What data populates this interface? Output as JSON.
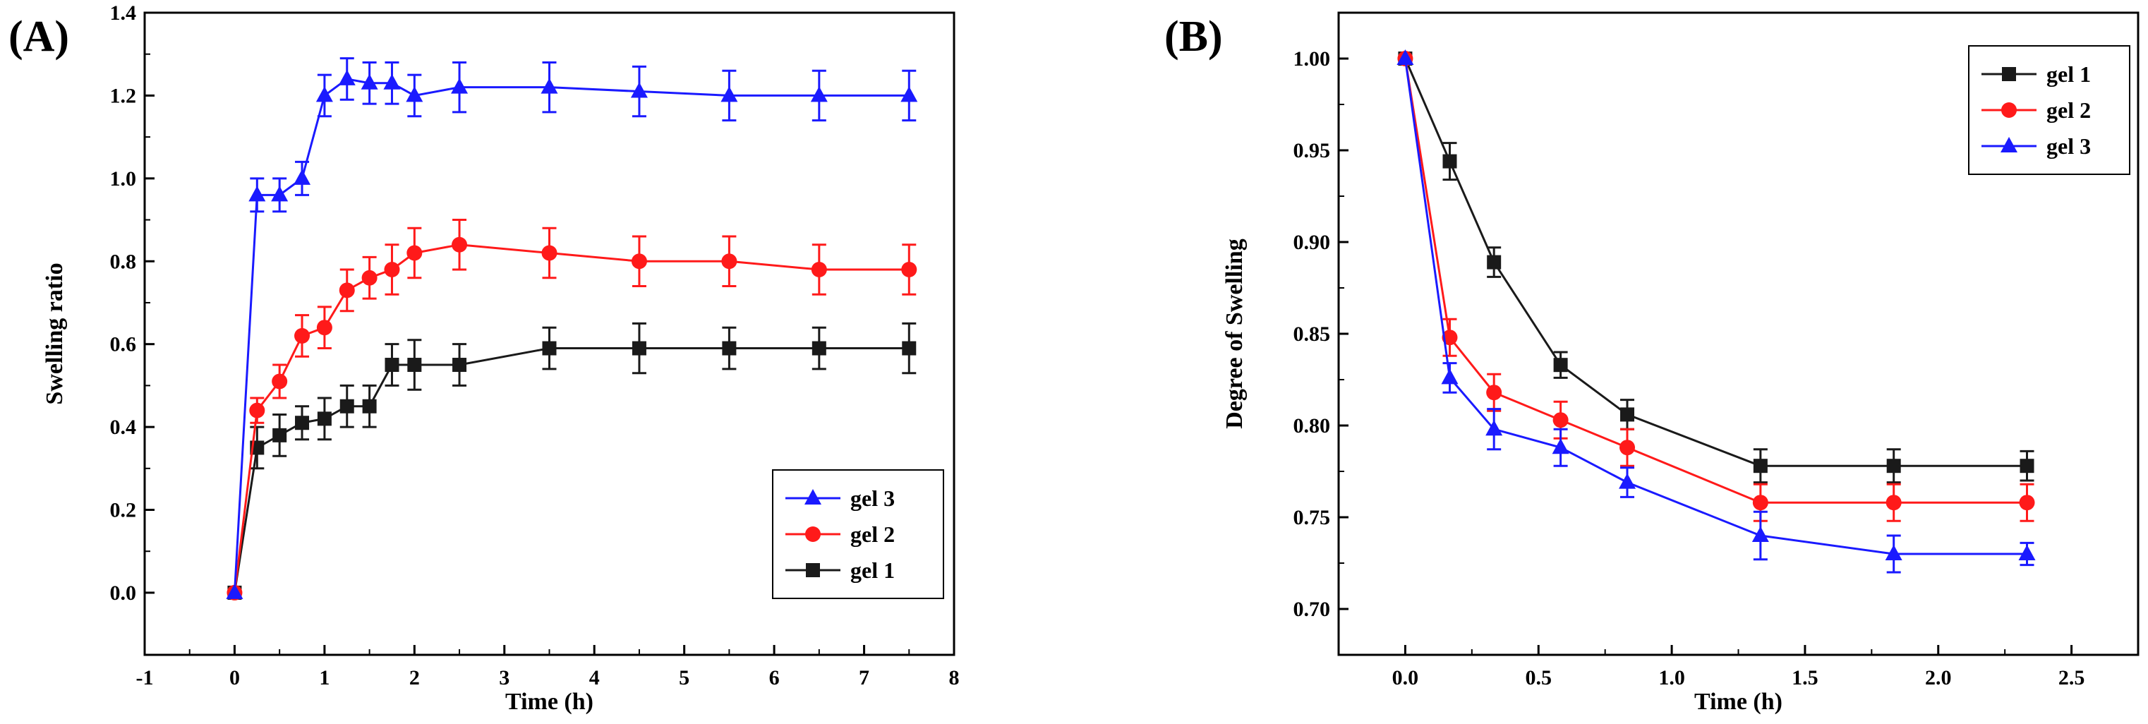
{
  "panels": [
    {
      "label": "(A)",
      "chart_data": {
        "type": "line",
        "xlabel": "Time (h)",
        "ylabel": "Swelling ratio",
        "xlim": [
          -1,
          8
        ],
        "ylim": [
          -0.15,
          1.4
        ],
        "xticks": [
          -1,
          0,
          1,
          2,
          3,
          4,
          5,
          6,
          7,
          8
        ],
        "xtick_labels": [
          "-1",
          "0",
          "1",
          "2",
          "3",
          "4",
          "5",
          "6",
          "7",
          "8"
        ],
        "yticks": [
          0.0,
          0.2,
          0.4,
          0.6,
          0.8,
          1.0,
          1.2,
          1.4
        ],
        "ytick_labels": [
          "0.0",
          "0.2",
          "0.4",
          "0.6",
          "0.8",
          "1.0",
          "1.2",
          "1.4"
        ],
        "grid": false,
        "legend_position": "bottom-right",
        "legend_order": [
          "gel 3",
          "gel 2",
          "gel 1"
        ],
        "series": [
          {
            "name": "gel 1",
            "color": "#1a1a1a",
            "marker": "square",
            "x": [
              0,
              0.25,
              0.5,
              0.75,
              1.0,
              1.25,
              1.5,
              1.75,
              2.0,
              2.5,
              3.5,
              4.5,
              5.5,
              6.5,
              7.5
            ],
            "y": [
              0.0,
              0.35,
              0.38,
              0.41,
              0.42,
              0.45,
              0.45,
              0.55,
              0.55,
              0.55,
              0.59,
              0.59,
              0.59,
              0.59,
              0.59
            ],
            "err": [
              0.0,
              0.05,
              0.05,
              0.04,
              0.05,
              0.05,
              0.05,
              0.05,
              0.06,
              0.05,
              0.05,
              0.06,
              0.05,
              0.05,
              0.06
            ]
          },
          {
            "name": "gel 2",
            "color": "#ff1a1a",
            "marker": "circle",
            "x": [
              0,
              0.25,
              0.5,
              0.75,
              1.0,
              1.25,
              1.5,
              1.75,
              2.0,
              2.5,
              3.5,
              4.5,
              5.5,
              6.5,
              7.5
            ],
            "y": [
              0.0,
              0.44,
              0.51,
              0.62,
              0.64,
              0.73,
              0.76,
              0.78,
              0.82,
              0.84,
              0.82,
              0.8,
              0.8,
              0.78,
              0.78
            ],
            "err": [
              0.0,
              0.03,
              0.04,
              0.05,
              0.05,
              0.05,
              0.05,
              0.06,
              0.06,
              0.06,
              0.06,
              0.06,
              0.06,
              0.06,
              0.06
            ]
          },
          {
            "name": "gel 3",
            "color": "#1a1aff",
            "marker": "triangle",
            "x": [
              0,
              0.25,
              0.5,
              0.75,
              1.0,
              1.25,
              1.5,
              1.75,
              2.0,
              2.5,
              3.5,
              4.5,
              5.5,
              6.5,
              7.5
            ],
            "y": [
              0.0,
              0.96,
              0.96,
              1.0,
              1.2,
              1.24,
              1.23,
              1.23,
              1.2,
              1.22,
              1.22,
              1.21,
              1.2,
              1.2,
              1.2
            ],
            "err": [
              0.0,
              0.04,
              0.04,
              0.04,
              0.05,
              0.05,
              0.05,
              0.05,
              0.05,
              0.06,
              0.06,
              0.06,
              0.06,
              0.06,
              0.06
            ]
          }
        ]
      }
    },
    {
      "label": "(B)",
      "chart_data": {
        "type": "line",
        "xlabel": "Time (h)",
        "ylabel": "Degree of Swelling",
        "xlim": [
          -0.25,
          2.75
        ],
        "ylim": [
          0.675,
          1.025
        ],
        "xticks": [
          0.0,
          0.5,
          1.0,
          1.5,
          2.0,
          2.5
        ],
        "xtick_labels": [
          "0.0",
          "0.5",
          "1.0",
          "1.5",
          "2.0",
          "2.5"
        ],
        "yticks": [
          0.7,
          0.75,
          0.8,
          0.85,
          0.9,
          0.95,
          1.0
        ],
        "ytick_labels": [
          "0.70",
          "0.75",
          "0.80",
          "0.85",
          "0.90",
          "0.95",
          "1.00"
        ],
        "grid": false,
        "legend_position": "top-right",
        "legend_order": [
          "gel 1",
          "gel 2",
          "gel 3"
        ],
        "series": [
          {
            "name": "gel 1",
            "color": "#1a1a1a",
            "marker": "square",
            "x": [
              0,
              0.167,
              0.333,
              0.583,
              0.833,
              1.333,
              1.833,
              2.333
            ],
            "y": [
              1.0,
              0.944,
              0.889,
              0.833,
              0.806,
              0.778,
              0.778,
              0.778
            ],
            "err": [
              0.0,
              0.01,
              0.008,
              0.007,
              0.008,
              0.009,
              0.009,
              0.008
            ]
          },
          {
            "name": "gel 2",
            "color": "#ff1a1a",
            "marker": "circle",
            "x": [
              0,
              0.167,
              0.333,
              0.583,
              0.833,
              1.333,
              1.833,
              2.333
            ],
            "y": [
              1.0,
              0.848,
              0.818,
              0.803,
              0.788,
              0.758,
              0.758,
              0.758
            ],
            "err": [
              0.0,
              0.01,
              0.01,
              0.01,
              0.01,
              0.01,
              0.01,
              0.01
            ]
          },
          {
            "name": "gel 3",
            "color": "#1a1aff",
            "marker": "triangle",
            "x": [
              0,
              0.167,
              0.333,
              0.583,
              0.833,
              1.333,
              1.833,
              2.333
            ],
            "y": [
              1.0,
              0.826,
              0.798,
              0.788,
              0.769,
              0.74,
              0.73,
              0.73
            ],
            "err": [
              0.0,
              0.008,
              0.011,
              0.01,
              0.008,
              0.013,
              0.01,
              0.006
            ]
          }
        ]
      }
    }
  ]
}
